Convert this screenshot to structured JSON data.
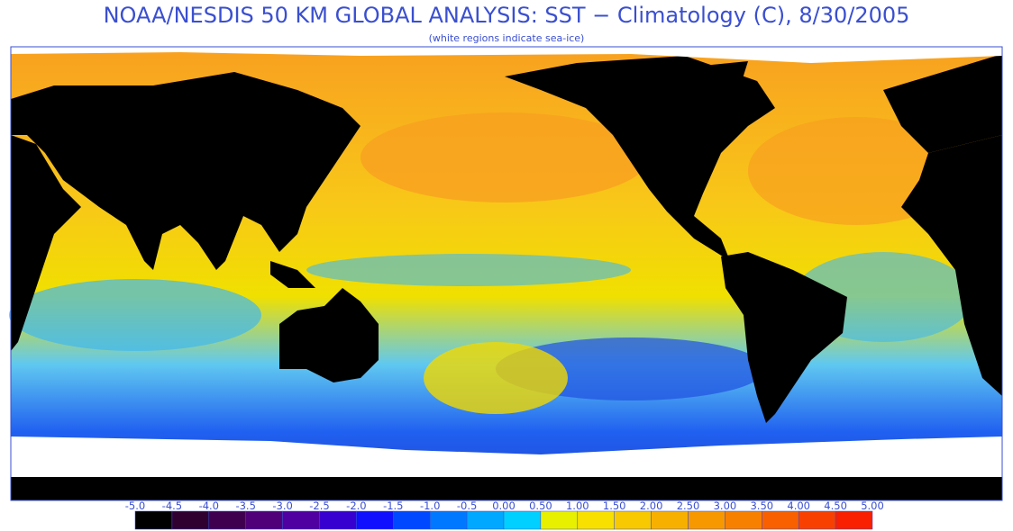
{
  "header": {
    "title": "NOAA/NESDIS 50 KM GLOBAL ANALYSIS: SST − Climatology (C), 8/30/2005",
    "subtitle": "(white regions indicate sea-ice)"
  },
  "colorbar": {
    "lim": [
      -5,
      5
    ],
    "ticks": [
      {
        "value": -5,
        "label": "-5.0"
      },
      {
        "value": -4.5,
        "label": "-4.5"
      },
      {
        "value": -4,
        "label": "-4.0"
      },
      {
        "value": -3.5,
        "label": "-3.5"
      },
      {
        "value": -3,
        "label": "-3.0"
      },
      {
        "value": -2.5,
        "label": "-2.5"
      },
      {
        "value": -2,
        "label": "-2.0"
      },
      {
        "value": -1.5,
        "label": "-1.5"
      },
      {
        "value": -1,
        "label": "-1.0"
      },
      {
        "value": -0.5,
        "label": "-0.5"
      },
      {
        "value": 0,
        "label": "0.00"
      },
      {
        "value": 0.5,
        "label": "0.50"
      },
      {
        "value": 1,
        "label": "1.00"
      },
      {
        "value": 1.5,
        "label": "1.50"
      },
      {
        "value": 2,
        "label": "2.00"
      },
      {
        "value": 2.5,
        "label": "2.50"
      },
      {
        "value": 3,
        "label": "3.00"
      },
      {
        "value": 3.5,
        "label": "3.50"
      },
      {
        "value": 4,
        "label": "4.00"
      },
      {
        "value": 4.5,
        "label": "4.50"
      },
      {
        "value": 5,
        "label": "5.00"
      }
    ],
    "colors": [
      "#000000",
      "#300030",
      "#400050",
      "#500078",
      "#5000a0",
      "#3800d0",
      "#1010ff",
      "#0048ff",
      "#0078ff",
      "#00a8ff",
      "#00d0ff",
      "#e8f000",
      "#f8e000",
      "#f8c800",
      "#f8b000",
      "#f89800",
      "#f88000",
      "#f86000",
      "#f84000",
      "#f82000"
    ]
  }
}
